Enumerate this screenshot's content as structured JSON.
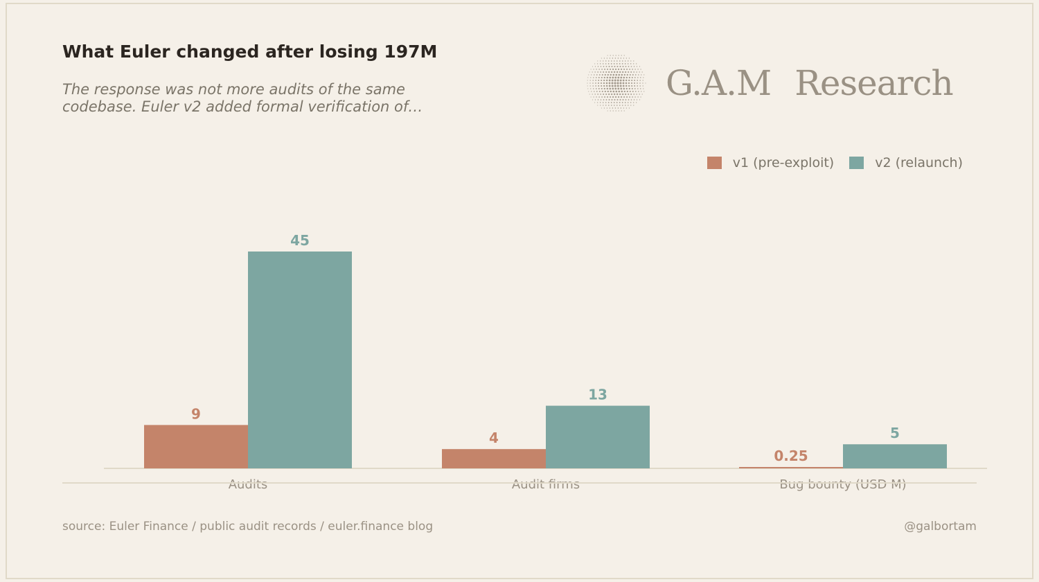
{
  "header": {
    "title": "What Euler changed after losing 197M",
    "subtitle": "The response was not more audits of the same codebase. Euler v2 added formal verification of…"
  },
  "brand": {
    "name_part1": "G.A.M",
    "name_part2": "Research",
    "logo_icon": "dotted-globe-icon"
  },
  "footer": {
    "source": "source: Euler Finance / public audit records / euler.finance blog",
    "handle": "@galbortam"
  },
  "colors": {
    "v1": "#c4846a",
    "v2": "#7da6a1",
    "background": "#f5f0e8"
  },
  "chart_data": {
    "type": "bar",
    "title": "What Euler changed after losing 197M",
    "categories": [
      "Audits",
      "Audit firms",
      "Bug bounty (USD M)"
    ],
    "series": [
      {
        "name": "v1 (pre-exploit)",
        "values": [
          9,
          4,
          0.25
        ],
        "labels": [
          "9",
          "4",
          "0.25"
        ],
        "color": "#c4846a"
      },
      {
        "name": "v2 (relaunch)",
        "values": [
          45,
          13,
          5
        ],
        "labels": [
          "45",
          "13",
          "5"
        ],
        "color": "#7da6a1"
      }
    ],
    "xlabel": "",
    "ylabel": "",
    "ylim": [
      0,
      50
    ],
    "grid": false,
    "legend": "top-right"
  }
}
